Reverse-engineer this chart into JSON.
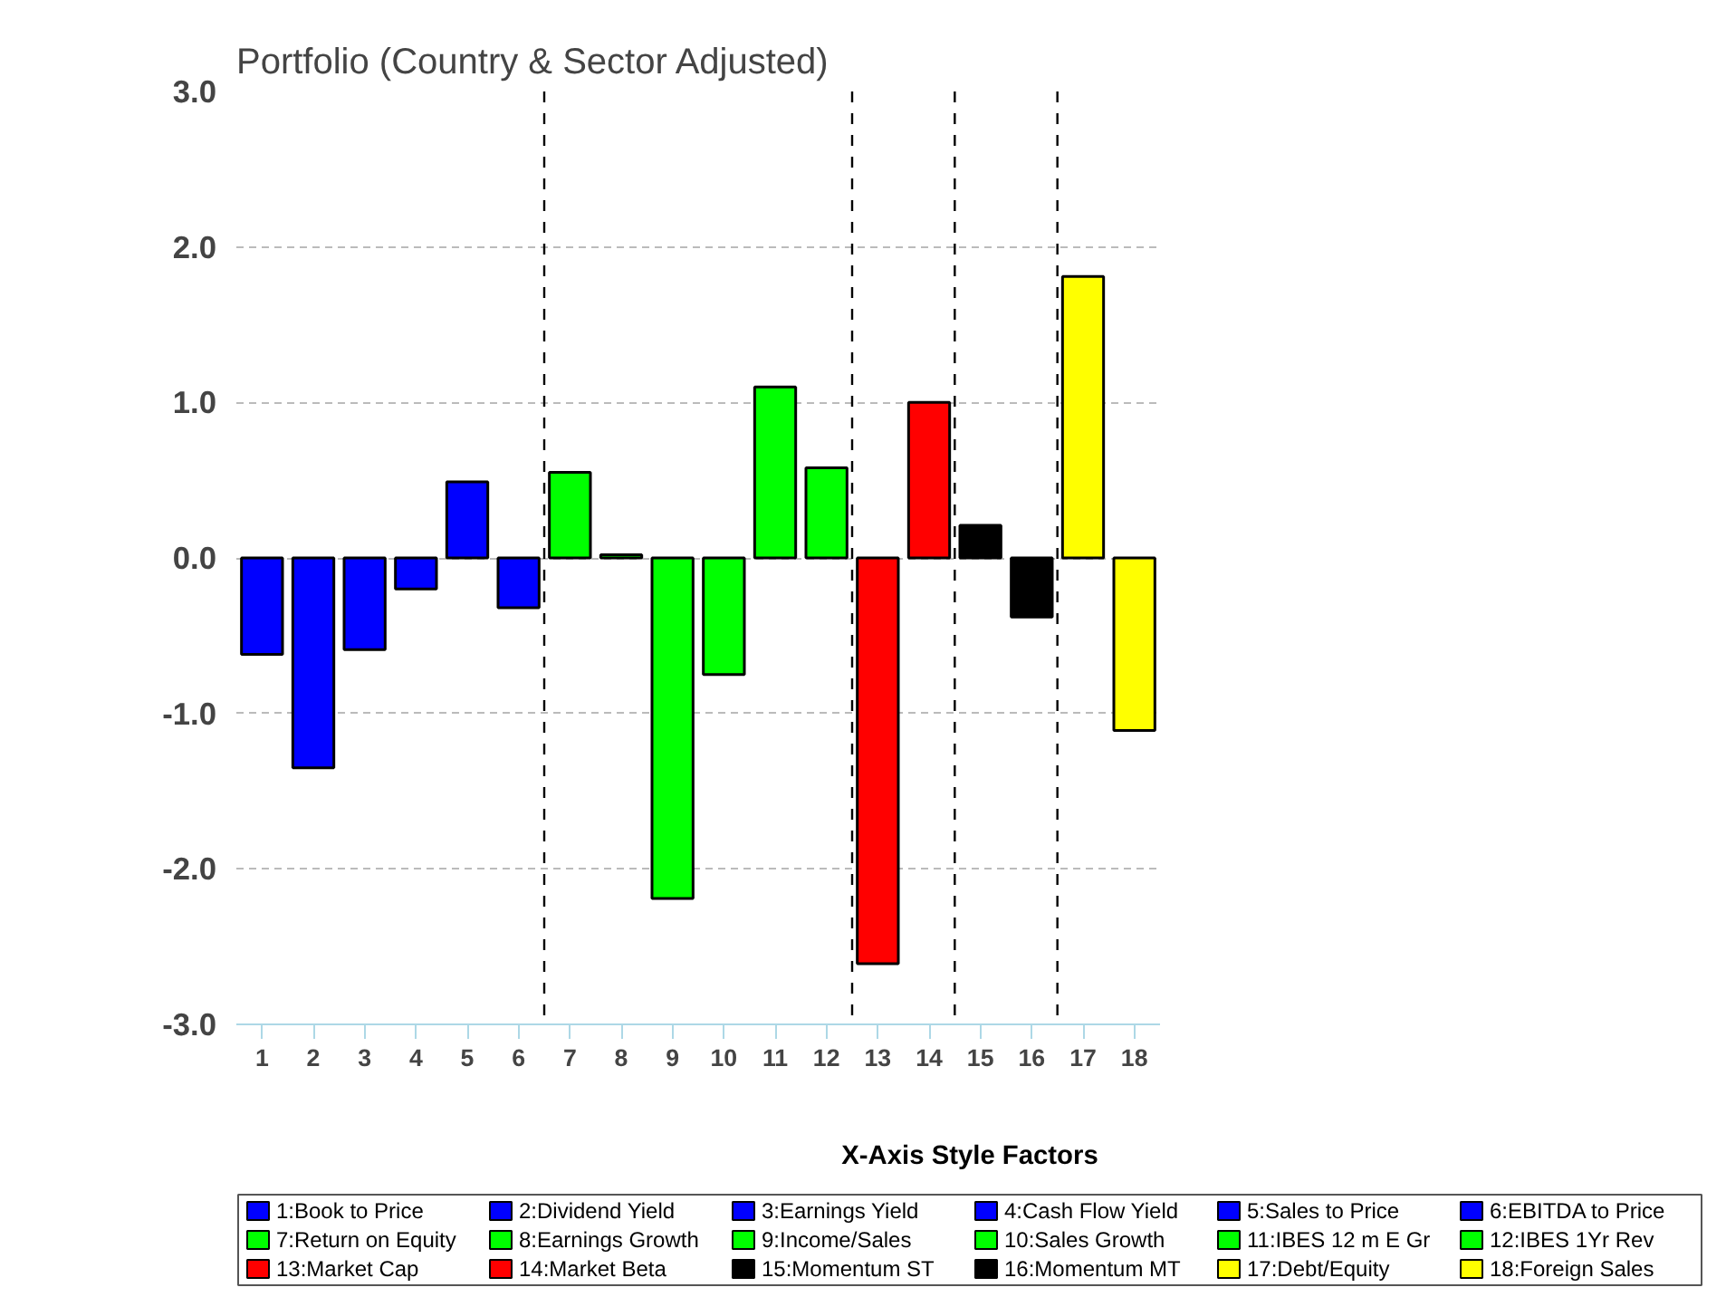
{
  "chart_data": {
    "type": "bar",
    "title": "Portfolio (Country & Sector Adjusted)",
    "x": [
      1,
      2,
      3,
      4,
      5,
      6,
      7,
      8,
      9,
      10,
      11,
      12,
      13,
      14,
      15,
      16,
      17,
      18
    ],
    "series": [
      {
        "name": "1:Book to Price",
        "color": "#0000ff",
        "values": [
          -0.62,
          null,
          null,
          null,
          null,
          null,
          null,
          null,
          null,
          null,
          null,
          null,
          null,
          null,
          null,
          null,
          null,
          null
        ]
      },
      {
        "name": "2:Dividend Yield",
        "color": "#0000ff",
        "values": [
          null,
          -1.35,
          null,
          null,
          null,
          null,
          null,
          null,
          null,
          null,
          null,
          null,
          null,
          null,
          null,
          null,
          null,
          null
        ]
      },
      {
        "name": "3:Earnings Yield",
        "color": "#0000ff",
        "values": [
          null,
          null,
          -0.59,
          null,
          null,
          null,
          null,
          null,
          null,
          null,
          null,
          null,
          null,
          null,
          null,
          null,
          null,
          null
        ]
      },
      {
        "name": "4:Cash Flow Yield",
        "color": "#0000ff",
        "values": [
          null,
          null,
          null,
          -0.2,
          null,
          null,
          null,
          null,
          null,
          null,
          null,
          null,
          null,
          null,
          null,
          null,
          null,
          null
        ]
      },
      {
        "name": "5:Sales to Price",
        "color": "#0000ff",
        "values": [
          null,
          null,
          null,
          null,
          0.49,
          null,
          null,
          null,
          null,
          null,
          null,
          null,
          null,
          null,
          null,
          null,
          null,
          null
        ]
      },
      {
        "name": "6:EBITDA to Price",
        "color": "#0000ff",
        "values": [
          null,
          null,
          null,
          null,
          null,
          -0.32,
          null,
          null,
          null,
          null,
          null,
          null,
          null,
          null,
          null,
          null,
          null,
          null
        ]
      },
      {
        "name": "7:Return on Equity",
        "color": "#00ff00",
        "values": [
          null,
          null,
          null,
          null,
          null,
          null,
          0.55,
          null,
          null,
          null,
          null,
          null,
          null,
          null,
          null,
          null,
          null,
          null
        ]
      },
      {
        "name": "8:Earnings Growth",
        "color": "#00ff00",
        "values": [
          null,
          null,
          null,
          null,
          null,
          null,
          null,
          0.02,
          null,
          null,
          null,
          null,
          null,
          null,
          null,
          null,
          null,
          null
        ]
      },
      {
        "name": "9:Income/Sales",
        "color": "#00ff00",
        "values": [
          null,
          null,
          null,
          null,
          null,
          null,
          null,
          null,
          -2.19,
          null,
          null,
          null,
          null,
          null,
          null,
          null,
          null,
          null
        ]
      },
      {
        "name": "10:Sales Growth",
        "color": "#00ff00",
        "values": [
          null,
          null,
          null,
          null,
          null,
          null,
          null,
          null,
          null,
          -0.75,
          null,
          null,
          null,
          null,
          null,
          null,
          null,
          null
        ]
      },
      {
        "name": "11:IBES 12 m E Gr",
        "color": "#00ff00",
        "values": [
          null,
          null,
          null,
          null,
          null,
          null,
          null,
          null,
          null,
          null,
          1.1,
          null,
          null,
          null,
          null,
          null,
          null,
          null
        ]
      },
      {
        "name": "12:IBES 1Yr Rev",
        "color": "#00ff00",
        "values": [
          null,
          null,
          null,
          null,
          null,
          null,
          null,
          null,
          null,
          null,
          null,
          0.58,
          null,
          null,
          null,
          null,
          null,
          null
        ]
      },
      {
        "name": "13:Market Cap",
        "color": "#ff0000",
        "values": [
          null,
          null,
          null,
          null,
          null,
          null,
          null,
          null,
          null,
          null,
          null,
          null,
          -2.61,
          null,
          null,
          null,
          null,
          null
        ]
      },
      {
        "name": "14:Market Beta",
        "color": "#ff0000",
        "values": [
          null,
          null,
          null,
          null,
          null,
          null,
          null,
          null,
          null,
          null,
          null,
          null,
          null,
          1.0,
          null,
          null,
          null,
          null
        ]
      },
      {
        "name": "15:Momentum ST",
        "color": "#000000",
        "values": [
          null,
          null,
          null,
          null,
          null,
          null,
          null,
          null,
          null,
          null,
          null,
          null,
          null,
          null,
          0.21,
          null,
          null,
          null
        ]
      },
      {
        "name": "16:Momentum MT",
        "color": "#000000",
        "values": [
          null,
          null,
          null,
          null,
          null,
          null,
          null,
          null,
          null,
          null,
          null,
          null,
          null,
          null,
          null,
          -0.38,
          null,
          null
        ]
      },
      {
        "name": "17:Debt/Equity",
        "color": "#ffff00",
        "values": [
          null,
          null,
          null,
          null,
          null,
          null,
          null,
          null,
          null,
          null,
          null,
          null,
          null,
          null,
          null,
          null,
          1.81,
          null
        ]
      },
      {
        "name": "18:Foreign Sales",
        "color": "#ffff00",
        "values": [
          null,
          null,
          null,
          null,
          null,
          null,
          null,
          null,
          null,
          null,
          null,
          null,
          null,
          null,
          null,
          null,
          null,
          -1.11
        ]
      }
    ],
    "legend_title": "X-Axis Style Factors",
    "legend": "bottom",
    "xlim": [
      0.5,
      18.5
    ],
    "xticks": [
      1,
      2,
      3,
      4,
      5,
      6,
      7,
      8,
      9,
      10,
      11,
      12,
      13,
      14,
      15,
      16,
      17,
      18
    ],
    "ylim": [
      -3.0,
      3.0
    ],
    "yticks": [
      {
        "value": -3,
        "label": "-3.0"
      },
      {
        "value": -2,
        "label": "-2.0"
      },
      {
        "value": -1,
        "label": "-1.0"
      },
      {
        "value": 0,
        "label": "0.0"
      },
      {
        "value": 1,
        "label": "1.0"
      },
      {
        "value": 2,
        "label": "2.0"
      },
      {
        "value": 3,
        "label": "3.0"
      }
    ],
    "grid": "y",
    "ref_lines": [
      {
        "axis": "x",
        "value": 6.5,
        "label": null,
        "color": "#000000",
        "line_style": "dashed"
      },
      {
        "axis": "x",
        "value": 12.5,
        "label": null,
        "color": "#000000",
        "line_style": "dashed"
      },
      {
        "axis": "x",
        "value": 14.5,
        "label": null,
        "color": "#000000",
        "line_style": "dashed"
      },
      {
        "axis": "x",
        "value": 16.5,
        "label": null,
        "color": "#000000",
        "line_style": "dashed"
      }
    ]
  }
}
